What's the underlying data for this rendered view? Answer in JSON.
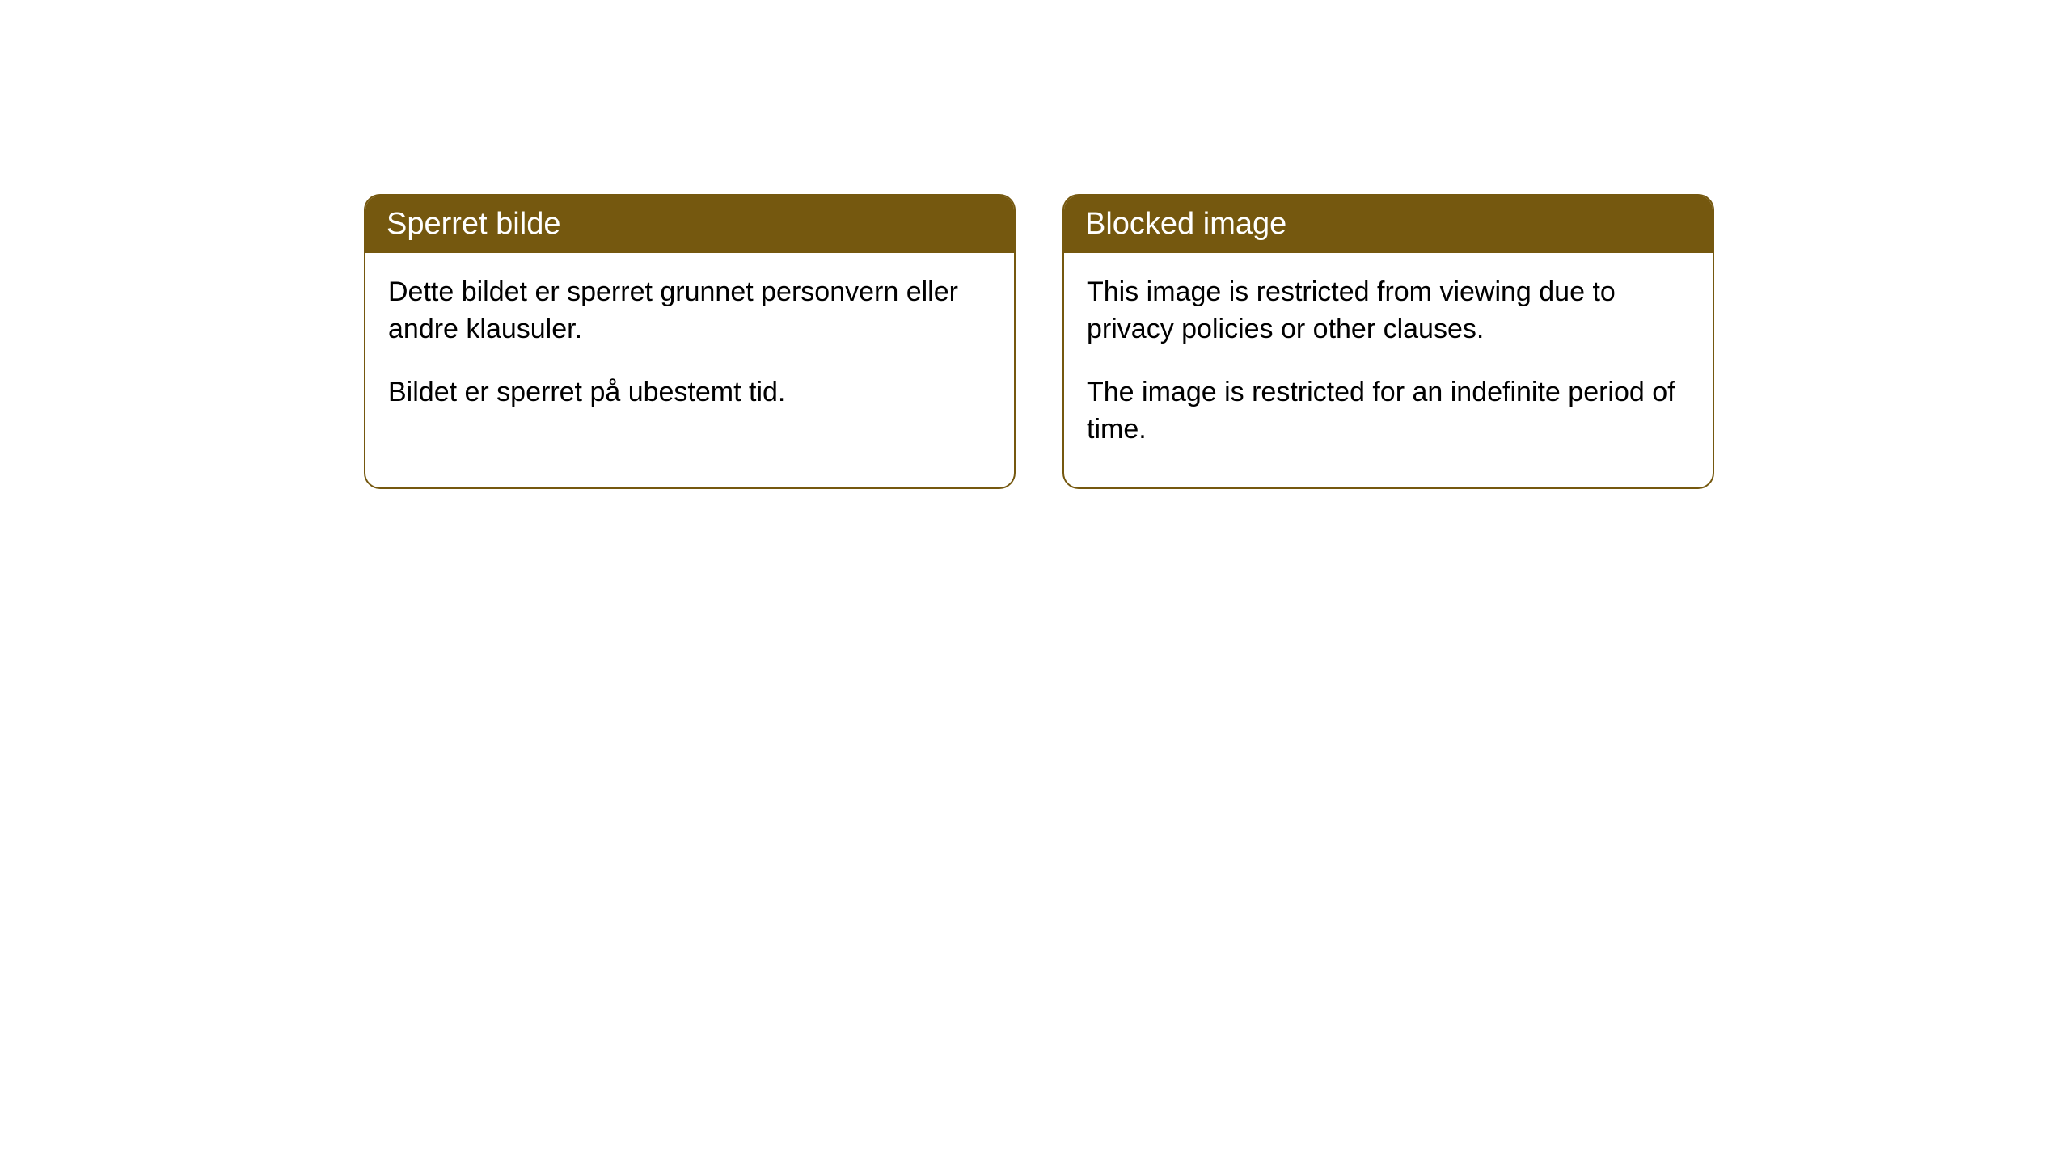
{
  "cards": [
    {
      "title": "Sperret bilde",
      "paragraph1": "Dette bildet er sperret grunnet personvern eller andre klausuler.",
      "paragraph2": "Bildet er sperret på ubestemt tid."
    },
    {
      "title": "Blocked image",
      "paragraph1": "This image is restricted from viewing due to privacy policies or other clauses.",
      "paragraph2": "The image is restricted for an indefinite period of time."
    }
  ],
  "styling": {
    "header_bg_color": "#75580f",
    "header_text_color": "#ffffff",
    "border_color": "#75580f",
    "body_bg_color": "#ffffff",
    "body_text_color": "#000000",
    "border_radius": 20,
    "header_fontsize": 38,
    "body_fontsize": 34
  }
}
